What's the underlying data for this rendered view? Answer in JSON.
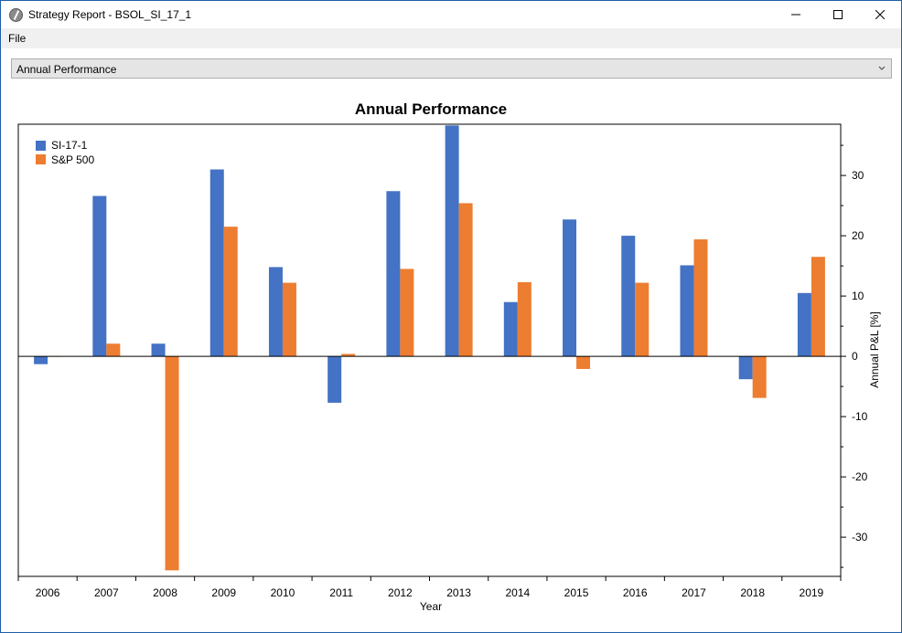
{
  "window": {
    "title": "Strategy Report - BSOL_SI_17_1"
  },
  "menu": {
    "file_label": "File"
  },
  "view_selector": {
    "selected": "Annual Performance"
  },
  "colors": {
    "series1": "#4472c4",
    "series2": "#ed7d31"
  },
  "chart_data": {
    "type": "bar",
    "title": "Annual Performance",
    "xlabel": "Year",
    "ylabel": "Annual P&L [%]",
    "categories": [
      "2006",
      "2007",
      "2008",
      "2009",
      "2010",
      "2011",
      "2012",
      "2013",
      "2014",
      "2015",
      "2016",
      "2017",
      "2018",
      "2019"
    ],
    "series": [
      {
        "name": "SI-17-1",
        "values": [
          -1.3,
          26.6,
          2.1,
          31.0,
          14.8,
          -7.7,
          27.4,
          38.3,
          9.0,
          22.7,
          20.0,
          15.1,
          -3.8,
          10.5
        ]
      },
      {
        "name": "S&P 500",
        "values": [
          0.0,
          2.1,
          -35.5,
          21.5,
          12.2,
          0.4,
          14.5,
          25.4,
          12.3,
          -2.1,
          12.2,
          19.4,
          -6.9,
          16.5
        ]
      }
    ],
    "ylim": [
      -36.5,
      38.5
    ],
    "yticks": [
      -30,
      -20,
      -10,
      0,
      10,
      20,
      30
    ],
    "legend": "top-left",
    "grid": false
  }
}
